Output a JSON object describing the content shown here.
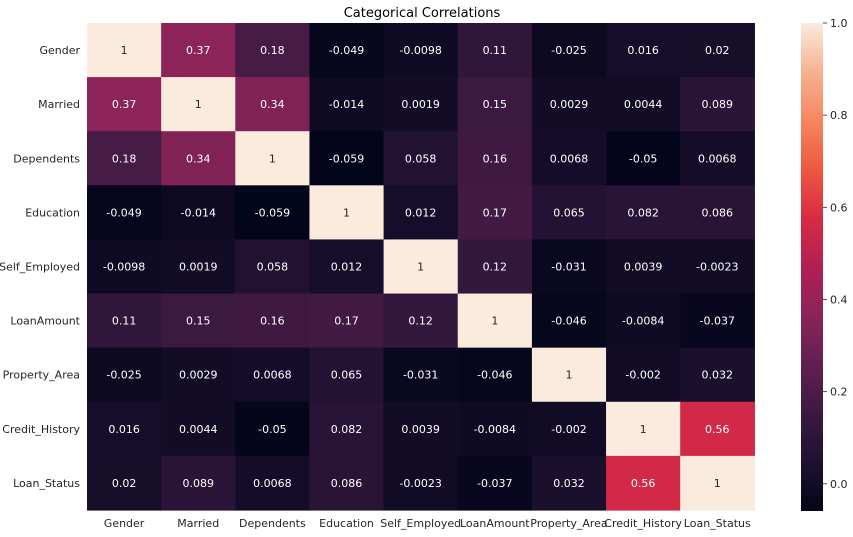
{
  "chart_data": {
    "type": "heatmap",
    "title": "Categorical Correlations",
    "row_labels": [
      "Gender",
      "Married",
      "Dependents",
      "Education",
      "Self_Employed",
      "LoanAmount",
      "Property_Area",
      "Credit_History",
      "Loan_Status"
    ],
    "col_labels": [
      "Gender",
      "Married",
      "Dependents",
      "Education",
      "Self_Employed",
      "LoanAmount",
      "Property_Area",
      "Credit_History",
      "Loan_Status"
    ],
    "values": [
      [
        1,
        0.37,
        0.18,
        -0.049,
        -0.0098,
        0.11,
        -0.025,
        0.016,
        0.02
      ],
      [
        0.37,
        1,
        0.34,
        -0.014,
        0.0019,
        0.15,
        0.0029,
        0.0044,
        0.089
      ],
      [
        0.18,
        0.34,
        1,
        -0.059,
        0.058,
        0.16,
        0.0068,
        -0.05,
        0.0068
      ],
      [
        -0.049,
        -0.014,
        -0.059,
        1,
        0.012,
        0.17,
        0.065,
        0.082,
        0.086
      ],
      [
        -0.0098,
        0.0019,
        0.058,
        0.012,
        1,
        0.12,
        -0.031,
        0.0039,
        -0.0023
      ],
      [
        0.11,
        0.15,
        0.16,
        0.17,
        0.12,
        1,
        -0.046,
        -0.0084,
        -0.037
      ],
      [
        -0.025,
        0.0029,
        0.0068,
        0.065,
        -0.031,
        -0.046,
        1,
        -0.002,
        0.032
      ],
      [
        0.016,
        0.0044,
        -0.05,
        0.082,
        0.0039,
        -0.0084,
        -0.002,
        1,
        0.56
      ],
      [
        0.02,
        0.089,
        0.0068,
        0.086,
        -0.0023,
        -0.037,
        0.032,
        0.56,
        1
      ]
    ],
    "colormap": "rocket",
    "vmin": -0.059,
    "vmax": 1,
    "colorbar_ticks": [
      "0.0",
      "0.2",
      "0.4",
      "0.6",
      "0.8",
      "1.0"
    ],
    "colorbar_tick_values": [
      0.0,
      0.2,
      0.4,
      0.6,
      0.8,
      1.0
    ],
    "annotate": true
  }
}
